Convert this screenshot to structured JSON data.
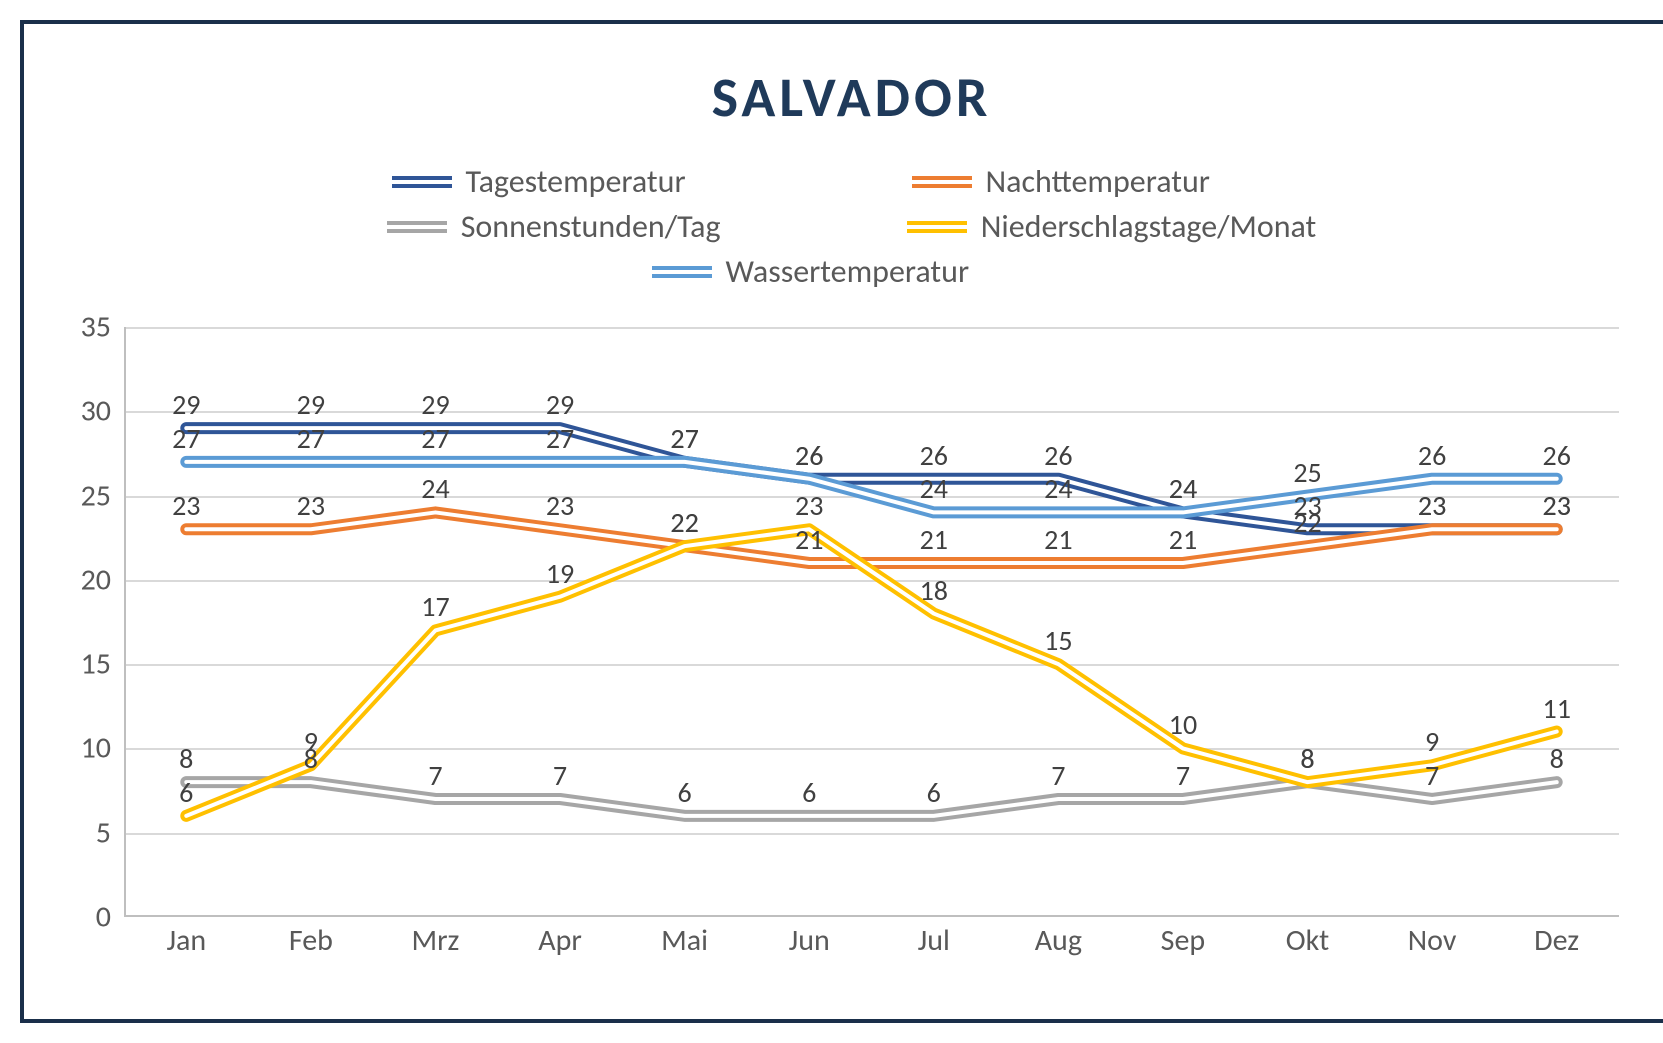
{
  "chart": {
    "title": "SALVADOR",
    "title_fontsize": 56,
    "title_color": "#1f3a5a",
    "background_color": "#ffffff",
    "border_color": "#1a2f4a",
    "grid_color": "#d9d9d9",
    "axis_color": "#bfbfbf",
    "label_color": "#595959",
    "data_label_color": "#404040",
    "type": "line",
    "line_style": "double",
    "line_width": 4,
    "ylim": [
      0,
      35
    ],
    "ytick_step": 5,
    "yticks": [
      0,
      5,
      10,
      15,
      20,
      25,
      30,
      35
    ],
    "categories": [
      "Jan",
      "Feb",
      "Mrz",
      "Apr",
      "Mai",
      "Jun",
      "Jul",
      "Aug",
      "Sep",
      "Okt",
      "Nov",
      "Dez"
    ],
    "series": [
      {
        "name": "Tagestemperatur",
        "color": "#2f5597",
        "values": [
          29,
          29,
          29,
          29,
          27,
          26,
          26,
          26,
          24,
          23,
          23,
          23
        ]
      },
      {
        "name": "Nachttemperatur",
        "color": "#ed7d31",
        "values": [
          23,
          23,
          24,
          23,
          22,
          21,
          21,
          21,
          21,
          22,
          23,
          23
        ]
      },
      {
        "name": "Sonnenstunden/Tag",
        "color": "#a6a6a6",
        "values": [
          8,
          8,
          7,
          7,
          6,
          6,
          6,
          7,
          7,
          8,
          7,
          8
        ]
      },
      {
        "name": "Niederschlagstage/Monat",
        "color": "#ffc000",
        "values": [
          6,
          9,
          17,
          19,
          22,
          23,
          18,
          15,
          10,
          8,
          9,
          11
        ]
      },
      {
        "name": "Wassertemperatur",
        "color": "#5b9bd5",
        "values": [
          27,
          27,
          27,
          27,
          27,
          26,
          24,
          24,
          24,
          25,
          26,
          26
        ]
      }
    ],
    "legend_fontsize": 32,
    "axis_fontsize": 30,
    "data_label_fontsize": 28
  }
}
